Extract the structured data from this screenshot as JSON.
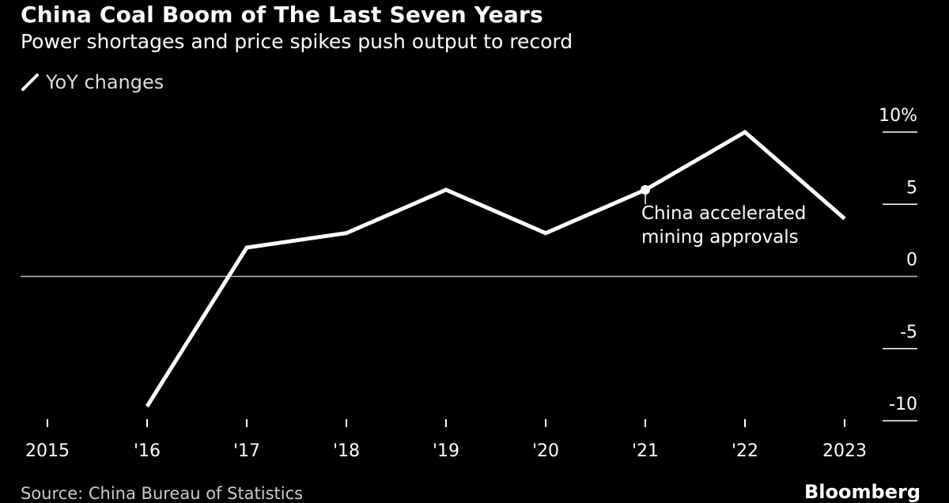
{
  "chart_data": {
    "type": "line",
    "title": "China Coal Boom of The Last Seven Years",
    "subtitle": "Power shortages and price spikes push output to record",
    "legend": [
      "YoY changes"
    ],
    "x_labels": [
      "2015",
      "'16",
      "'17",
      "'18",
      "'19",
      "'20",
      "'21",
      "'22",
      "2023"
    ],
    "series": [
      {
        "name": "YoY changes",
        "x": [
          "2016",
          "2017",
          "2018",
          "2019",
          "2020",
          "2021",
          "2022",
          "2023"
        ],
        "values": [
          -9,
          2,
          3,
          6,
          3,
          6,
          10,
          4
        ],
        "color": "#ffffff"
      }
    ],
    "y_ticks": [
      "10%",
      "5",
      "0",
      "-5",
      "-10"
    ],
    "y_tick_values": [
      10,
      5,
      0,
      -5,
      -10
    ],
    "ylim": [
      -10,
      10
    ],
    "annotation": {
      "point": "2021",
      "lines": [
        "China accelerated",
        "mining approvals"
      ]
    },
    "source": "Source: China Bureau of Statistics",
    "brand": "Bloomberg",
    "grid": false,
    "legend_placement": "top-left"
  }
}
